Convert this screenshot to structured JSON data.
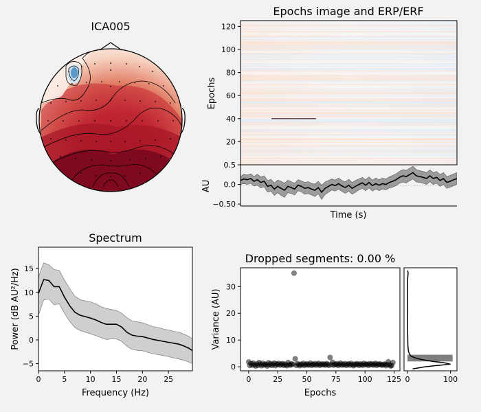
{
  "page": {
    "background": "#f2f2f2",
    "axis_color": "#000000",
    "colors": {
      "dark_red": "#7f0a1f",
      "mid_red": "#b31c2c",
      "light_red": "#e07a63",
      "pale": "#f8e5dc",
      "blue": "#5b9ac7",
      "light_blue": "#cfe3f2",
      "gray_fill": "#9c9c9c",
      "dark_gray": "#555555"
    }
  },
  "topomap": {
    "title": "ICA005"
  },
  "chart_data": [
    {
      "id": "epochs-image",
      "type": "heatmap",
      "title": "Epochs image and ERP/ERF",
      "xlabel": "Time (s)",
      "ylabel": "Epochs",
      "ylim": [
        0,
        125
      ],
      "yticks": [
        20,
        40,
        60,
        80,
        100,
        120
      ],
      "ytick_labels": [
        "20",
        "40",
        "60",
        "80",
        "100",
        "120"
      ],
      "highlighted_row": 40
    },
    {
      "id": "erp",
      "type": "line",
      "ylabel": "AU",
      "ylim": [
        -0.55,
        0.5
      ],
      "yticks": [
        -0.5,
        0.0,
        0.5
      ],
      "ytick_labels": [
        "−0.50",
        "0.0",
        "0.5"
      ],
      "mean": [
        0.1,
        0.14,
        0.12,
        0.15,
        0.08,
        0.12,
        0.05,
        0.08,
        -0.05,
        -0.02,
        -0.12,
        -0.05,
        -0.1,
        -0.15,
        -0.05,
        -0.08,
        -0.12,
        -0.02,
        -0.05,
        -0.1,
        -0.08,
        -0.12,
        -0.15,
        -0.08,
        -0.2,
        -0.1,
        -0.05,
        0.0,
        -0.03,
        0.02,
        -0.04,
        -0.08,
        -0.02,
        -0.1,
        -0.05,
        0.0,
        0.04,
        -0.02,
        0.05,
        -0.03,
        0.02,
        -0.02,
        0.02,
        0.0,
        0.05,
        0.08,
        0.12,
        0.18,
        0.22,
        0.2,
        0.25,
        0.3,
        0.22,
        0.2,
        0.18,
        0.15,
        0.22,
        0.15,
        0.18,
        0.1,
        0.15,
        0.05,
        0.08,
        0.12,
        0.15
      ],
      "band": [
        0.1,
        0.12,
        0.12,
        0.12,
        0.12,
        0.14,
        0.14,
        0.14,
        0.15,
        0.15,
        0.16,
        0.16,
        0.18,
        0.18,
        0.16,
        0.15,
        0.15,
        0.14,
        0.14,
        0.15,
        0.15,
        0.15,
        0.16,
        0.16,
        0.18,
        0.16,
        0.15,
        0.14,
        0.14,
        0.14,
        0.14,
        0.15,
        0.15,
        0.15,
        0.15,
        0.14,
        0.14,
        0.14,
        0.14,
        0.14,
        0.14,
        0.14,
        0.14,
        0.14,
        0.14,
        0.15,
        0.15,
        0.15,
        0.16,
        0.16,
        0.16,
        0.16,
        0.16,
        0.15,
        0.15,
        0.15,
        0.15,
        0.15,
        0.15,
        0.15,
        0.15,
        0.15,
        0.15,
        0.15,
        0.15
      ]
    },
    {
      "id": "spectrum",
      "type": "line",
      "title": "Spectrum",
      "xlabel": "Frequency (Hz)",
      "ylabel": "Power (dB AU²/Hz)",
      "xlim": [
        0,
        29.6
      ],
      "ylim": [
        -6.5,
        19.5
      ],
      "xticks": [
        0,
        5,
        10,
        15,
        20,
        25
      ],
      "xtick_labels": [
        "0",
        "5",
        "10",
        "15",
        "20",
        "25"
      ],
      "yticks": [
        -5,
        0,
        5,
        10,
        15
      ],
      "ytick_labels": [
        "−5",
        "0",
        "5",
        "10",
        "15"
      ],
      "x": [
        0,
        1,
        2,
        3,
        4,
        5,
        6,
        7,
        8,
        9,
        10,
        11,
        12,
        13,
        14,
        15,
        16,
        17,
        18,
        19,
        20,
        21,
        22,
        23,
        24,
        25,
        26,
        27,
        28,
        29,
        29.6
      ],
      "mean": [
        9.8,
        12.7,
        12.5,
        11.2,
        11.2,
        9.0,
        7.2,
        5.8,
        5.2,
        4.9,
        4.6,
        4.2,
        3.7,
        3.3,
        3.3,
        3.3,
        2.7,
        1.6,
        1.0,
        0.8,
        0.7,
        0.4,
        0.1,
        -0.1,
        -0.3,
        -0.5,
        -0.7,
        -0.9,
        -1.3,
        -1.8,
        -2.3
      ],
      "upper": [
        13.2,
        16.2,
        15.8,
        14.8,
        14.6,
        12.6,
        10.8,
        9.2,
        8.5,
        8.2,
        8.0,
        7.6,
        7.0,
        6.6,
        6.4,
        6.2,
        5.6,
        4.7,
        4.0,
        3.8,
        3.6,
        3.2,
        2.8,
        2.6,
        2.3,
        2.1,
        1.8,
        1.6,
        1.2,
        0.7,
        0.2
      ],
      "lower": [
        5.2,
        8.4,
        8.6,
        7.4,
        7.6,
        5.6,
        3.9,
        2.6,
        2.0,
        1.6,
        1.3,
        0.9,
        0.5,
        0.1,
        0.2,
        0.2,
        -0.3,
        -1.3,
        -2.0,
        -2.2,
        -2.3,
        -2.6,
        -2.9,
        -3.1,
        -3.3,
        -3.5,
        -3.8,
        -4.0,
        -4.3,
        -4.7,
        -5.0
      ]
    },
    {
      "id": "dropped-segments",
      "type": "scatter",
      "title": "Dropped segments: 0.00 %",
      "xlabel": "Epochs",
      "ylabel": "Variance (AU)",
      "xlim": [
        -7,
        130
      ],
      "ylim": [
        -1.5,
        37
      ],
      "xticks": [
        0,
        25,
        50,
        75,
        100,
        125
      ],
      "xtick_labels": [
        "0",
        "25",
        "50",
        "75",
        "100",
        "125"
      ],
      "yticks": [
        0,
        10,
        20,
        30
      ],
      "ytick_labels": [
        "0",
        "10",
        "20",
        "30"
      ],
      "x": [
        0,
        1,
        2,
        3,
        4,
        5,
        6,
        7,
        8,
        9,
        10,
        11,
        12,
        13,
        14,
        15,
        16,
        17,
        18,
        19,
        20,
        21,
        22,
        23,
        24,
        25,
        26,
        27,
        28,
        29,
        30,
        31,
        32,
        33,
        34,
        35,
        36,
        37,
        38,
        39,
        40,
        41,
        42,
        43,
        44,
        45,
        46,
        47,
        48,
        49,
        50,
        51,
        52,
        53,
        54,
        55,
        56,
        57,
        58,
        59,
        60,
        61,
        62,
        63,
        64,
        65,
        66,
        67,
        68,
        69,
        70,
        71,
        72,
        73,
        74,
        75,
        76,
        77,
        78,
        79,
        80,
        81,
        82,
        83,
        84,
        85,
        86,
        87,
        88,
        89,
        90,
        91,
        92,
        93,
        94,
        95,
        96,
        97,
        98,
        99,
        100,
        101,
        102,
        103,
        104,
        105,
        106,
        107,
        108,
        109,
        110,
        111,
        112,
        113,
        114,
        115,
        116,
        117,
        118,
        119,
        120,
        121,
        122,
        123,
        124
      ],
      "y": [
        1.8,
        0.5,
        1.2,
        0.6,
        1.4,
        0.7,
        0.3,
        1.1,
        0.5,
        1.6,
        0.9,
        0.4,
        1.3,
        0.6,
        1.0,
        0.8,
        0.3,
        1.5,
        0.7,
        1.2,
        0.5,
        0.9,
        1.4,
        0.4,
        1.1,
        0.8,
        1.3,
        0.6,
        0.9,
        1.2,
        0.5,
        1.0,
        0.7,
        0.4,
        1.6,
        0.8,
        0.6,
        1.1,
        0.9,
        35.0,
        3.0,
        0.5,
        1.2,
        0.8,
        0.4,
        1.0,
        0.7,
        1.3,
        0.5,
        0.9,
        1.1,
        0.6,
        0.8,
        1.4,
        0.5,
        1.0,
        0.7,
        1.2,
        0.6,
        0.9,
        1.3,
        0.5,
        0.8,
        1.1,
        0.7,
        1.0,
        0.6,
        1.2,
        0.9,
        0.5,
        3.5,
        0.8,
        1.7,
        0.6,
        1.0,
        0.8,
        1.2,
        0.5,
        0.9,
        1.4,
        0.6,
        1.0,
        0.7,
        1.2,
        0.5,
        0.9,
        1.1,
        0.6,
        1.3,
        0.8,
        0.4,
        1.0,
        0.7,
        1.2,
        0.9,
        0.5,
        1.1,
        0.8,
        0.6,
        1.3,
        0.7,
        1.0,
        0.9,
        0.5,
        1.2,
        0.8,
        1.1,
        0.6,
        0.9,
        1.3,
        0.5,
        1.0,
        0.8,
        1.1,
        0.7,
        0.6,
        0.9,
        1.0,
        0.4,
        0.8,
        1.9,
        0.7,
        0.3,
        0.5,
        1.6
      ]
    },
    {
      "id": "variance-histogram",
      "type": "bar",
      "xlim": [
        -8,
        115
      ],
      "ylim": [
        -1.5,
        37
      ],
      "xticks": [
        0,
        100
      ],
      "xtick_labels": [
        "0",
        "100"
      ],
      "bins": [
        [
          2,
          4.5,
          105
        ]
      ],
      "density_y": [
        -0.8,
        0.0,
        0.5,
        1.0,
        1.5,
        2.0,
        2.5,
        3.0,
        3.5,
        4.0,
        5.0,
        6.0,
        8.0,
        12.0,
        20.0,
        28.0,
        33.0,
        35.0,
        36.0
      ],
      "density_x": [
        12,
        40,
        70,
        100,
        85,
        60,
        40,
        25,
        15,
        8,
        4,
        2,
        1,
        0.5,
        0.3,
        0.2,
        0.4,
        1.5,
        0.5
      ]
    }
  ]
}
